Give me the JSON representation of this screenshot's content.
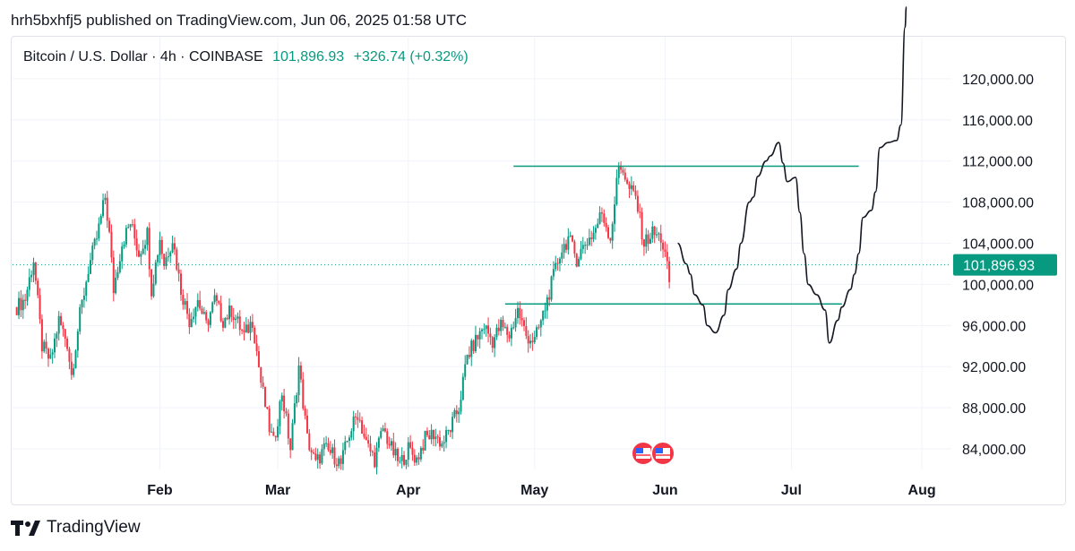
{
  "header": {
    "publisher_line": "hrh5bxhfj5 published on TradingView.com, Jun 06, 2025 01:58 UTC"
  },
  "legend": {
    "symbol": "Bitcoin / U.S. Dollar · 4h · COINBASE",
    "price": "101,896.93",
    "change": "+326.74 (+0.32%)"
  },
  "footer": {
    "brand": "TradingView"
  },
  "icons": [
    "tradingview-logo-icon",
    "us-flag-event-icon"
  ],
  "colors": {
    "up": "#089981",
    "down": "#f23645",
    "current": "#089981",
    "projection": "#131722"
  },
  "chart_data": {
    "type": "candlestick",
    "title": "Bitcoin / U.S. Dollar · 4h · COINBASE",
    "current_price": 101896.93,
    "y_ticks": [
      "120,000.00",
      "116,000.00",
      "112,000.00",
      "108,000.00",
      "104,000.00",
      "100,000.00",
      "96,000.00",
      "92,000.00",
      "88,000.00",
      "84,000.00"
    ],
    "y_tick_values": [
      120000,
      116000,
      112000,
      108000,
      104000,
      100000,
      96000,
      92000,
      88000,
      84000
    ],
    "x_ticks": [
      "Feb",
      "Mar",
      "Apr",
      "May",
      "Jun",
      "Jul",
      "Aug"
    ],
    "x_tick_days": [
      31,
      59,
      90,
      120,
      151,
      181,
      212
    ],
    "x_range_days": [
      -4,
      219
    ],
    "ylim": [
      83000,
      127000
    ],
    "price_path": [
      [
        -3,
        97800
      ],
      [
        -1,
        98600
      ],
      [
        1,
        102400
      ],
      [
        3,
        94000
      ],
      [
        5,
        92500
      ],
      [
        7,
        96500
      ],
      [
        9,
        94300
      ],
      [
        10,
        91200
      ],
      [
        12,
        97000
      ],
      [
        14,
        101500
      ],
      [
        16,
        104500
      ],
      [
        18,
        108500
      ],
      [
        19,
        104800
      ],
      [
        20,
        99500
      ],
      [
        22,
        104000
      ],
      [
        24,
        106000
      ],
      [
        26,
        103000
      ],
      [
        28,
        105000
      ],
      [
        29,
        99500
      ],
      [
        31,
        104500
      ],
      [
        32,
        102000
      ],
      [
        34,
        104500
      ],
      [
        36,
        99500
      ],
      [
        38,
        96500
      ],
      [
        40,
        98500
      ],
      [
        42,
        96000
      ],
      [
        44,
        98500
      ],
      [
        46,
        96500
      ],
      [
        48,
        97500
      ],
      [
        51,
        95000
      ],
      [
        53,
        96500
      ],
      [
        55,
        90500
      ],
      [
        57,
        86000
      ],
      [
        58,
        84500
      ],
      [
        60,
        89500
      ],
      [
        62,
        84000
      ],
      [
        64,
        92000
      ],
      [
        66,
        85000
      ],
      [
        68,
        82500
      ],
      [
        70,
        84000
      ],
      [
        72,
        83500
      ],
      [
        74,
        82500
      ],
      [
        76,
        85500
      ],
      [
        78,
        87500
      ],
      [
        80,
        84500
      ],
      [
        82,
        83000
      ],
      [
        84,
        86000
      ],
      [
        86,
        84000
      ],
      [
        88,
        82500
      ],
      [
        90,
        84000
      ],
      [
        92,
        83000
      ],
      [
        94,
        85000
      ],
      [
        96,
        85500
      ],
      [
        98,
        84500
      ],
      [
        100,
        86000
      ],
      [
        102,
        88000
      ],
      [
        104,
        93000
      ],
      [
        106,
        94500
      ],
      [
        108,
        96000
      ],
      [
        110,
        94500
      ],
      [
        112,
        96000
      ],
      [
        114,
        95000
      ],
      [
        116,
        97500
      ],
      [
        118,
        95000
      ],
      [
        120,
        94500
      ],
      [
        122,
        97000
      ],
      [
        124,
        100000
      ],
      [
        126,
        103000
      ],
      [
        128,
        104500
      ],
      [
        130,
        102500
      ],
      [
        132,
        104000
      ],
      [
        134,
        105000
      ],
      [
        136,
        107000
      ],
      [
        138,
        104500
      ],
      [
        140,
        111500
      ],
      [
        141,
        111300
      ],
      [
        142,
        109500
      ],
      [
        144,
        108500
      ],
      [
        146,
        104000
      ],
      [
        148,
        105000
      ],
      [
        150,
        104500
      ],
      [
        151,
        102800
      ],
      [
        152,
        100300
      ]
    ],
    "horizontal_lines": [
      {
        "price": 111500,
        "start_day": 115,
        "end_day": 197
      },
      {
        "price": 98100,
        "start_day": 113,
        "end_day": 193
      }
    ],
    "projection_path": [
      [
        154,
        104000
      ],
      [
        156,
        102000
      ],
      [
        157,
        101000
      ],
      [
        158,
        99000
      ],
      [
        160,
        98000
      ],
      [
        161,
        96000
      ],
      [
        163,
        95300
      ],
      [
        165,
        97000
      ],
      [
        166,
        99500
      ],
      [
        168,
        101500
      ],
      [
        169,
        104000
      ],
      [
        171,
        108000
      ],
      [
        172,
        108500
      ],
      [
        173,
        110500
      ],
      [
        175,
        112000
      ],
      [
        176,
        112500
      ],
      [
        178,
        113800
      ],
      [
        179,
        111800
      ],
      [
        180,
        110000
      ],
      [
        182,
        110400
      ],
      [
        183,
        107000
      ],
      [
        184,
        103000
      ],
      [
        185,
        100000
      ],
      [
        187,
        99000
      ],
      [
        189,
        97500
      ],
      [
        190,
        94300
      ],
      [
        192,
        96500
      ],
      [
        193,
        97800
      ],
      [
        195,
        99500
      ],
      [
        196,
        101000
      ],
      [
        197,
        103000
      ],
      [
        198,
        106500
      ],
      [
        200,
        107200
      ],
      [
        201,
        109000
      ],
      [
        202,
        113300
      ],
      [
        204,
        113800
      ],
      [
        206,
        114000
      ],
      [
        207,
        115500
      ],
      [
        208,
        125000
      ],
      [
        208.3,
        127000
      ]
    ]
  }
}
